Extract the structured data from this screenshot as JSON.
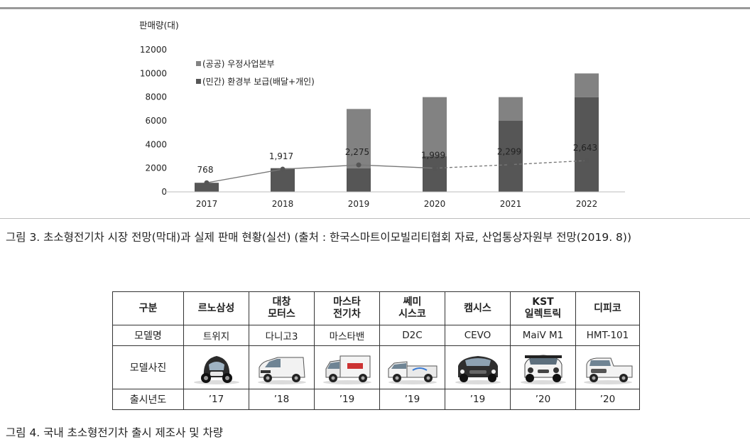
{
  "figure3": {
    "caption": "그림 3. 초소형전기차 시장 전망(막대)과 실제 판매 현황(실선) (출처 : 한국스마트이모빌리티협회 자료, 산업통상자원부 전망(2019. 8))"
  },
  "chart_data": {
    "type": "bar",
    "ylabel": "판매량(대)",
    "xlabel": "",
    "title": "",
    "ylim": [
      0,
      12000
    ],
    "yticks": [
      "0",
      "2000",
      "4000",
      "6000",
      "8000",
      "10000",
      "12000"
    ],
    "categories": [
      "2017",
      "2018",
      "2019",
      "2020",
      "2021",
      "2022"
    ],
    "stacked": true,
    "legend_position": "top-left",
    "series": [
      {
        "name": "(민간) 환경부 보급(배달+개인)",
        "color": "#565656",
        "values": [
          768,
          2000,
          2000,
          3000,
          6000,
          8000
        ]
      },
      {
        "name": "(공공) 우정사업본부",
        "color": "#828282",
        "values": [
          0,
          0,
          5000,
          5000,
          2000,
          2000
        ]
      }
    ],
    "line": {
      "values": [
        768,
        1917,
        2275,
        1999,
        2299,
        2643
      ],
      "labels": [
        "768",
        "1,917",
        "2,275",
        "1,999",
        "2,299",
        "2,643"
      ],
      "solid_until_index": 3,
      "dashed_after_index": 3,
      "color": "#777777"
    }
  },
  "figure4": {
    "caption": "그림 4. 국내 초소형전기차 출시 제조사 및 차량",
    "table": {
      "corner_header": "구분",
      "makers": [
        "르노삼성",
        "대창\n모터스",
        "마스타\n전기차",
        "쎄미\n시스코",
        "캠시스",
        "KST\n일렉트릭",
        "디피코"
      ],
      "row_labels": {
        "model": "모델명",
        "photo": "모델사진",
        "year": "출시년도"
      },
      "models": [
        "트위지",
        "다니고3",
        "마스타밴",
        "D2C",
        "CEVO",
        "MaiV  M1",
        "HMT-101"
      ],
      "car_icons": [
        "twizy-car-icon",
        "danigo-car-icon",
        "masta-van-icon",
        "d2c-truck-icon",
        "cevo-car-icon",
        "maiv-car-icon",
        "hmt-truck-icon"
      ],
      "years": [
        "’17",
        "’18",
        "’19",
        "’19",
        "’19",
        "’20",
        "’20"
      ]
    }
  }
}
